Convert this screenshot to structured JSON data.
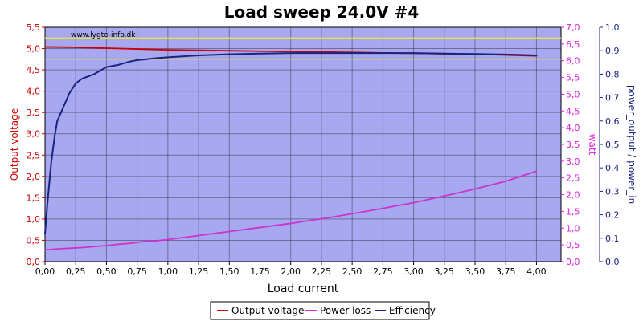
{
  "chart_data": {
    "type": "line",
    "title": "Load sweep 24.0V #4",
    "watermark": "www.lygte-info.dk",
    "xlabel": "Load current",
    "ylabel_left": "Output voltage",
    "ylabel_right1": "watt",
    "ylabel_right2": "power_output / power_in",
    "xlim": [
      0,
      4.2
    ],
    "ylim_left": [
      0,
      5.5
    ],
    "ylim_right1": [
      0,
      7.0
    ],
    "ylim_right2": [
      0,
      1.0
    ],
    "x_ticks": [
      "0,00",
      "0,25",
      "0,50",
      "0,75",
      "1,00",
      "1,25",
      "1,50",
      "1,75",
      "2,00",
      "2,25",
      "2,50",
      "2,75",
      "3,00",
      "3,25",
      "3,50",
      "3,75",
      "4,00"
    ],
    "y_left_ticks": [
      "0,0",
      "0,5",
      "1,0",
      "1,5",
      "2,0",
      "2,5",
      "3,0",
      "3,5",
      "4,0",
      "4,5",
      "5,0",
      "5,5"
    ],
    "y_right1_ticks": [
      "0,0",
      "0,5",
      "1,0",
      "1,5",
      "2,0",
      "2,5",
      "3,0",
      "3,5",
      "4,0",
      "4,5",
      "5,0",
      "5,5",
      "6,0",
      "6,5",
      "7,0"
    ],
    "y_right2_ticks": [
      "0,0",
      "0,1",
      "0,2",
      "0,3",
      "0,4",
      "0,5",
      "0,6",
      "0,7",
      "0,8",
      "0,9",
      "1,0"
    ],
    "reference_lines_left": [
      5.25,
      4.75
    ],
    "grid": true,
    "legend_position": "bottom-center",
    "colors": {
      "plot_bg": "#a8a8f0",
      "voltage": "#cc0000",
      "power_loss": "#cc33cc",
      "efficiency": "#1a237e",
      "reference": "#e8e830",
      "left_axis": "#cc0000",
      "right1_axis": "#e020e0",
      "right2_axis": "#1a237e"
    },
    "series": [
      {
        "name": "Output voltage",
        "axis": "left",
        "x": [
          0.0,
          0.25,
          0.5,
          0.75,
          1.0,
          1.25,
          1.5,
          1.75,
          2.0,
          2.25,
          2.5,
          2.75,
          3.0,
          3.25,
          3.5,
          3.75,
          4.0
        ],
        "values": [
          5.04,
          5.03,
          5.01,
          4.99,
          4.97,
          4.96,
          4.95,
          4.94,
          4.93,
          4.92,
          4.91,
          4.9,
          4.89,
          4.88,
          4.87,
          4.85,
          4.83
        ]
      },
      {
        "name": "Power loss",
        "axis": "right1",
        "x": [
          0.0,
          0.1,
          0.2,
          0.3,
          0.4,
          0.5,
          0.6,
          0.7,
          0.8,
          0.9,
          1.0,
          1.25,
          1.5,
          1.75,
          2.0,
          2.25,
          2.5,
          2.75,
          3.0,
          3.25,
          3.5,
          3.75,
          4.0
        ],
        "values": [
          0.35,
          0.38,
          0.4,
          0.42,
          0.45,
          0.48,
          0.52,
          0.55,
          0.6,
          0.62,
          0.66,
          0.78,
          0.9,
          1.02,
          1.14,
          1.28,
          1.43,
          1.59,
          1.76,
          1.96,
          2.17,
          2.4,
          2.7
        ]
      },
      {
        "name": "Efficiency",
        "axis": "right2",
        "x": [
          0.0,
          0.02,
          0.05,
          0.08,
          0.1,
          0.15,
          0.2,
          0.25,
          0.3,
          0.4,
          0.5,
          0.6,
          0.7,
          0.75,
          0.8,
          0.9,
          1.0,
          1.25,
          1.5,
          1.75,
          2.0,
          2.25,
          2.5,
          2.75,
          3.0,
          3.25,
          3.5,
          3.75,
          4.0
        ],
        "values": [
          0.12,
          0.25,
          0.42,
          0.54,
          0.6,
          0.66,
          0.72,
          0.76,
          0.78,
          0.8,
          0.83,
          0.84,
          0.855,
          0.86,
          0.862,
          0.868,
          0.872,
          0.88,
          0.885,
          0.888,
          0.89,
          0.89,
          0.89,
          0.89,
          0.89,
          0.888,
          0.886,
          0.884,
          0.88
        ]
      }
    ]
  }
}
